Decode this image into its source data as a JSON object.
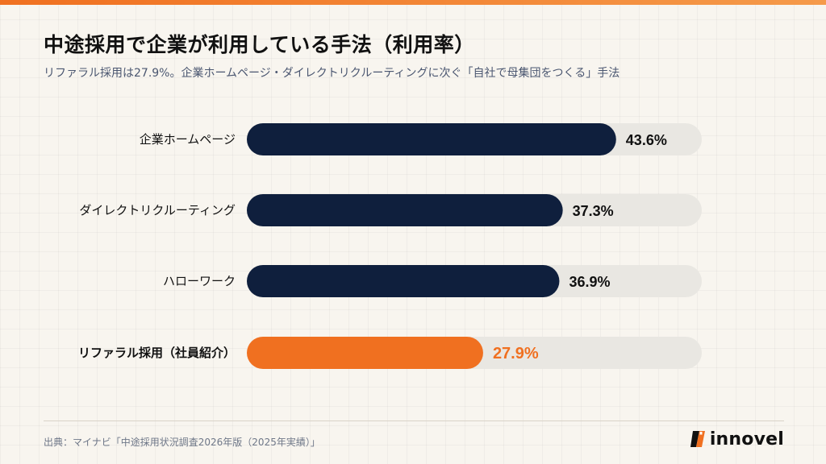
{
  "header": {
    "title": "中途採用で企業が利用している手法（利用率）",
    "subtitle": "リファラル採用は27.9%。企業ホームページ・ダイレクトリクルーティングに次ぐ「自社で母集団をつくる」手法"
  },
  "chart_data": {
    "type": "bar",
    "orientation": "horizontal",
    "categories": [
      "企業ホームページ",
      "ダイレクトリクルーティング",
      "ハローワーク",
      "リファラル採用（社員紹介）"
    ],
    "values": [
      43.6,
      37.3,
      36.9,
      27.9
    ],
    "value_labels": [
      "43.6%",
      "37.3%",
      "36.9%",
      "27.9%"
    ],
    "unit": "%",
    "highlight_index": 3,
    "xlim": [
      0,
      60
    ],
    "grid": false,
    "colors": {
      "bar": "#0f1f3d",
      "highlight": "#f07020",
      "track": "#e9e7e2",
      "label": "#111111",
      "highlight_label": "#f07020"
    }
  },
  "footer": {
    "source": "出典：マイナビ「中途採用状況調査2026年版（2025年実績）」",
    "logo_text": "innovel",
    "logo_icon": "innovel-logo-mark",
    "accent": "#f07020"
  }
}
